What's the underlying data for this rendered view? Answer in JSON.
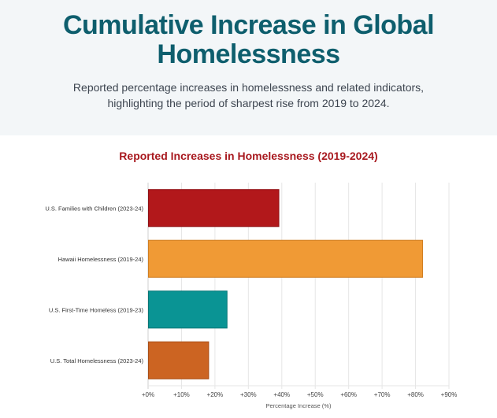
{
  "header": {
    "title": "Cumulative Increase in Global Homelessness",
    "subtitle": "Reported percentage increases in homelessness and related indicators, highlighting the period of sharpest rise from 2019 to 2024."
  },
  "chart_data": {
    "type": "bar",
    "orientation": "horizontal",
    "title": "Reported Increases in Homelessness (2019-2024)",
    "xlabel": "Percentage Increase (%)",
    "ylabel": "",
    "xlim": [
      0,
      90
    ],
    "x_ticks": [
      "+0%",
      "+10%",
      "+20%",
      "+30%",
      "+40%",
      "+50%",
      "+60%",
      "+70%",
      "+80%",
      "+90%"
    ],
    "grid": true,
    "categories": [
      "U.S. Families with Children (2023-24)",
      "Hawaii Homelessness (2019-24)",
      "U.S. First-Time Homeless (2019-23)",
      "U.S. Total Homelessness (2023-24)"
    ],
    "values": [
      39,
      82,
      23.5,
      18
    ],
    "colors": [
      "#b2181b",
      "#f09a35",
      "#0a9494",
      "#cc6422"
    ],
    "border_colors": [
      "#8f1116",
      "#d07e22",
      "#087575",
      "#a94e16"
    ]
  }
}
